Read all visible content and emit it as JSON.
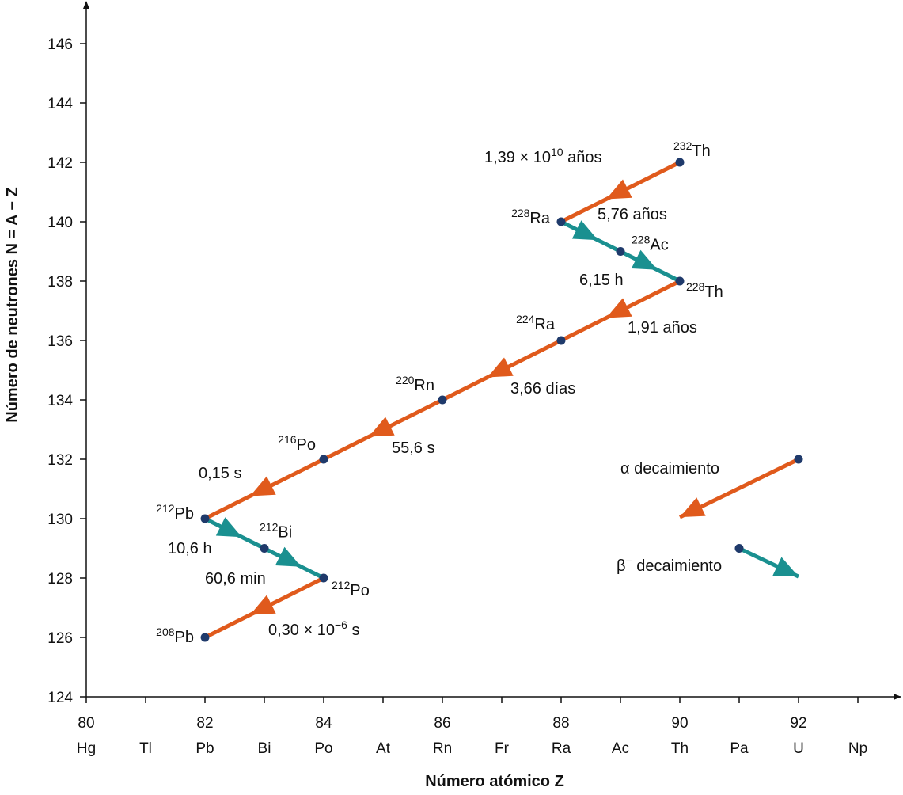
{
  "chart_data": {
    "type": "decay-chain",
    "xlabel": "Número atómico Z",
    "ylabel": "Número de neutrones  N = A − Z",
    "xlim": [
      80,
      94
    ],
    "ylim": [
      124,
      146
    ],
    "x_ticks": [
      80,
      82,
      84,
      86,
      88,
      90,
      92
    ],
    "x_elements": [
      "Hg",
      "Tl",
      "Pb",
      "Bi",
      "Po",
      "At",
      "Rn",
      "Fr",
      "Ra",
      "Ac",
      "Th",
      "Pa",
      "U",
      "Np"
    ],
    "y_ticks": [
      124,
      126,
      128,
      130,
      132,
      134,
      136,
      138,
      140,
      142,
      144,
      146
    ],
    "colors": {
      "alpha": "#e05a1c",
      "beta": "#1a9090",
      "point": "#1f3a6b"
    },
    "nuclides": [
      {
        "id": "Th232",
        "mass": "232",
        "symbol": "Th",
        "z": 90,
        "n": 142
      },
      {
        "id": "Ra228",
        "mass": "228",
        "symbol": "Ra",
        "z": 88,
        "n": 140
      },
      {
        "id": "Ac228",
        "mass": "228",
        "symbol": "Ac",
        "z": 89,
        "n": 139
      },
      {
        "id": "Th228",
        "mass": "228",
        "symbol": "Th",
        "z": 90,
        "n": 138
      },
      {
        "id": "Ra224",
        "mass": "224",
        "symbol": "Ra",
        "z": 88,
        "n": 136
      },
      {
        "id": "Rn220",
        "mass": "220",
        "symbol": "Rn",
        "z": 86,
        "n": 134
      },
      {
        "id": "Po216",
        "mass": "216",
        "symbol": "Po",
        "z": 84,
        "n": 132
      },
      {
        "id": "Pb212",
        "mass": "212",
        "symbol": "Pb",
        "z": 82,
        "n": 130
      },
      {
        "id": "Bi212",
        "mass": "212",
        "symbol": "Bi",
        "z": 83,
        "n": 129
      },
      {
        "id": "Po212",
        "mass": "212",
        "symbol": "Po",
        "z": 84,
        "n": 128
      },
      {
        "id": "Pb208",
        "mass": "208",
        "symbol": "Pb",
        "z": 82,
        "n": 126
      }
    ],
    "decays": [
      {
        "from": "Th232",
        "to": "Ra228",
        "type": "alpha",
        "half_life": "1,39 × 10",
        "half_life_exp": "10",
        "half_life_unit": " años"
      },
      {
        "from": "Ra228",
        "to": "Ac228",
        "type": "beta",
        "half_life": "5,76 años"
      },
      {
        "from": "Ac228",
        "to": "Th228",
        "type": "beta",
        "half_life": "6,15 h"
      },
      {
        "from": "Th228",
        "to": "Ra224",
        "type": "alpha",
        "half_life": "1,91 años"
      },
      {
        "from": "Ra224",
        "to": "Rn220",
        "type": "alpha",
        "half_life": "3,66 días"
      },
      {
        "from": "Rn220",
        "to": "Po216",
        "type": "alpha",
        "half_life": "55,6 s"
      },
      {
        "from": "Po216",
        "to": "Pb212",
        "type": "alpha",
        "half_life": "0,15 s"
      },
      {
        "from": "Pb212",
        "to": "Bi212",
        "type": "beta",
        "half_life": "10,6 h"
      },
      {
        "from": "Bi212",
        "to": "Po212",
        "type": "beta",
        "half_life": "60,6 min"
      },
      {
        "from": "Po212",
        "to": "Pb208",
        "type": "alpha",
        "half_life": "0,30 × 10",
        "half_life_exp": "−6",
        "half_life_unit": " s"
      }
    ],
    "legend": {
      "alpha": {
        "symbol": "α",
        "label": " decaimiento"
      },
      "beta": {
        "symbol": "β",
        "sup": "−",
        "label": " decaimiento"
      }
    }
  }
}
